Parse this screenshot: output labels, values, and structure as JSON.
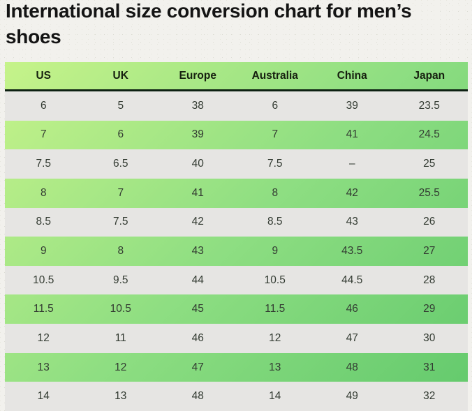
{
  "title": "International size conversion chart for men’s shoes",
  "chart_data": {
    "type": "table",
    "title": "International size conversion chart for men’s shoes",
    "columns": [
      "US",
      "UK",
      "Europe",
      "Australia",
      "China",
      "Japan"
    ],
    "rows": [
      [
        "6",
        "5",
        "38",
        "6",
        "39",
        "23.5"
      ],
      [
        "7",
        "6",
        "39",
        "7",
        "41",
        "24.5"
      ],
      [
        "7.5",
        "6.5",
        "40",
        "7.5",
        "–",
        "25"
      ],
      [
        "8",
        "7",
        "41",
        "8",
        "42",
        "25.5"
      ],
      [
        "8.5",
        "7.5",
        "42",
        "8.5",
        "43",
        "26"
      ],
      [
        "9",
        "8",
        "43",
        "9",
        "43.5",
        "27"
      ],
      [
        "10.5",
        "9.5",
        "44",
        "10.5",
        "44.5",
        "28"
      ],
      [
        "11.5",
        "10.5",
        "45",
        "11.5",
        "46",
        "29"
      ],
      [
        "12",
        "11",
        "46",
        "12",
        "47",
        "30"
      ],
      [
        "13",
        "12",
        "47",
        "13",
        "48",
        "31"
      ],
      [
        "14",
        "13",
        "48",
        "14",
        "49",
        "32"
      ]
    ],
    "layout_hints": {
      "row_striping": "odd rows gray, even rows green gradient",
      "header_separator": "dark 3px line"
    }
  },
  "colors": {
    "page_background": "#f2f1ed",
    "table_gradient_start": "#c6f38a",
    "table_gradient_mid": "#8ede82",
    "table_gradient_end": "#62c96c",
    "alt_row_gray": "#e6e5e3",
    "header_border": "#0d2012",
    "title_text": "#141414",
    "cell_text": "#333b32"
  }
}
